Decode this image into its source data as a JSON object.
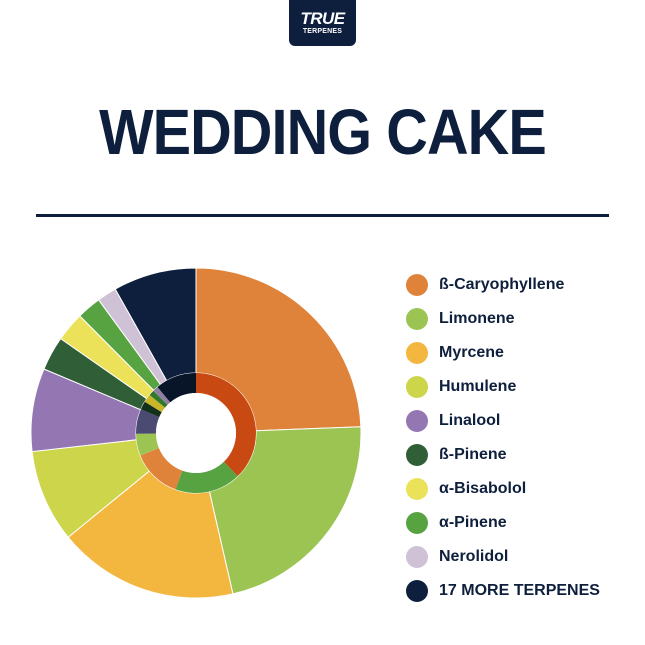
{
  "brand": {
    "line1": "TRUE",
    "line2": "TERPENES"
  },
  "title": "WEDDING CAKE",
  "chart_data": {
    "type": "pie",
    "variant": "donut",
    "title": "WEDDING CAKE",
    "legend_position": "right",
    "categories": [
      "ß-Caryophyllene",
      "Limonene",
      "Myrcene",
      "Humulene",
      "Linalool",
      "ß-Pinene",
      "α-Bisabolol",
      "α-Pinene",
      "Nerolidol",
      "17 MORE TERPENES"
    ],
    "values": [
      25.5,
      23.0,
      18.5,
      9.5,
      8.5,
      3.5,
      3.0,
      2.5,
      2.0,
      8.5
    ],
    "inner_values": [
      25.5,
      12.0,
      9.0,
      4.0,
      4.5,
      1.5,
      1.5,
      1.0,
      1.0,
      7.5
    ],
    "colors": [
      "#e0833a",
      "#9cc453",
      "#f3b63f",
      "#cdd64a",
      "#9476b2",
      "#2f5e37",
      "#ece25a",
      "#57a342",
      "#cfc2d6",
      "#0e1f3d"
    ],
    "inner_colors": [
      "#c84a12",
      "#57a342",
      "#e0833a",
      "#9cc453",
      "#4b4a72",
      "#13301c",
      "#c9b62a",
      "#2f7a2a",
      "#8f7fa3",
      "#081428"
    ]
  }
}
